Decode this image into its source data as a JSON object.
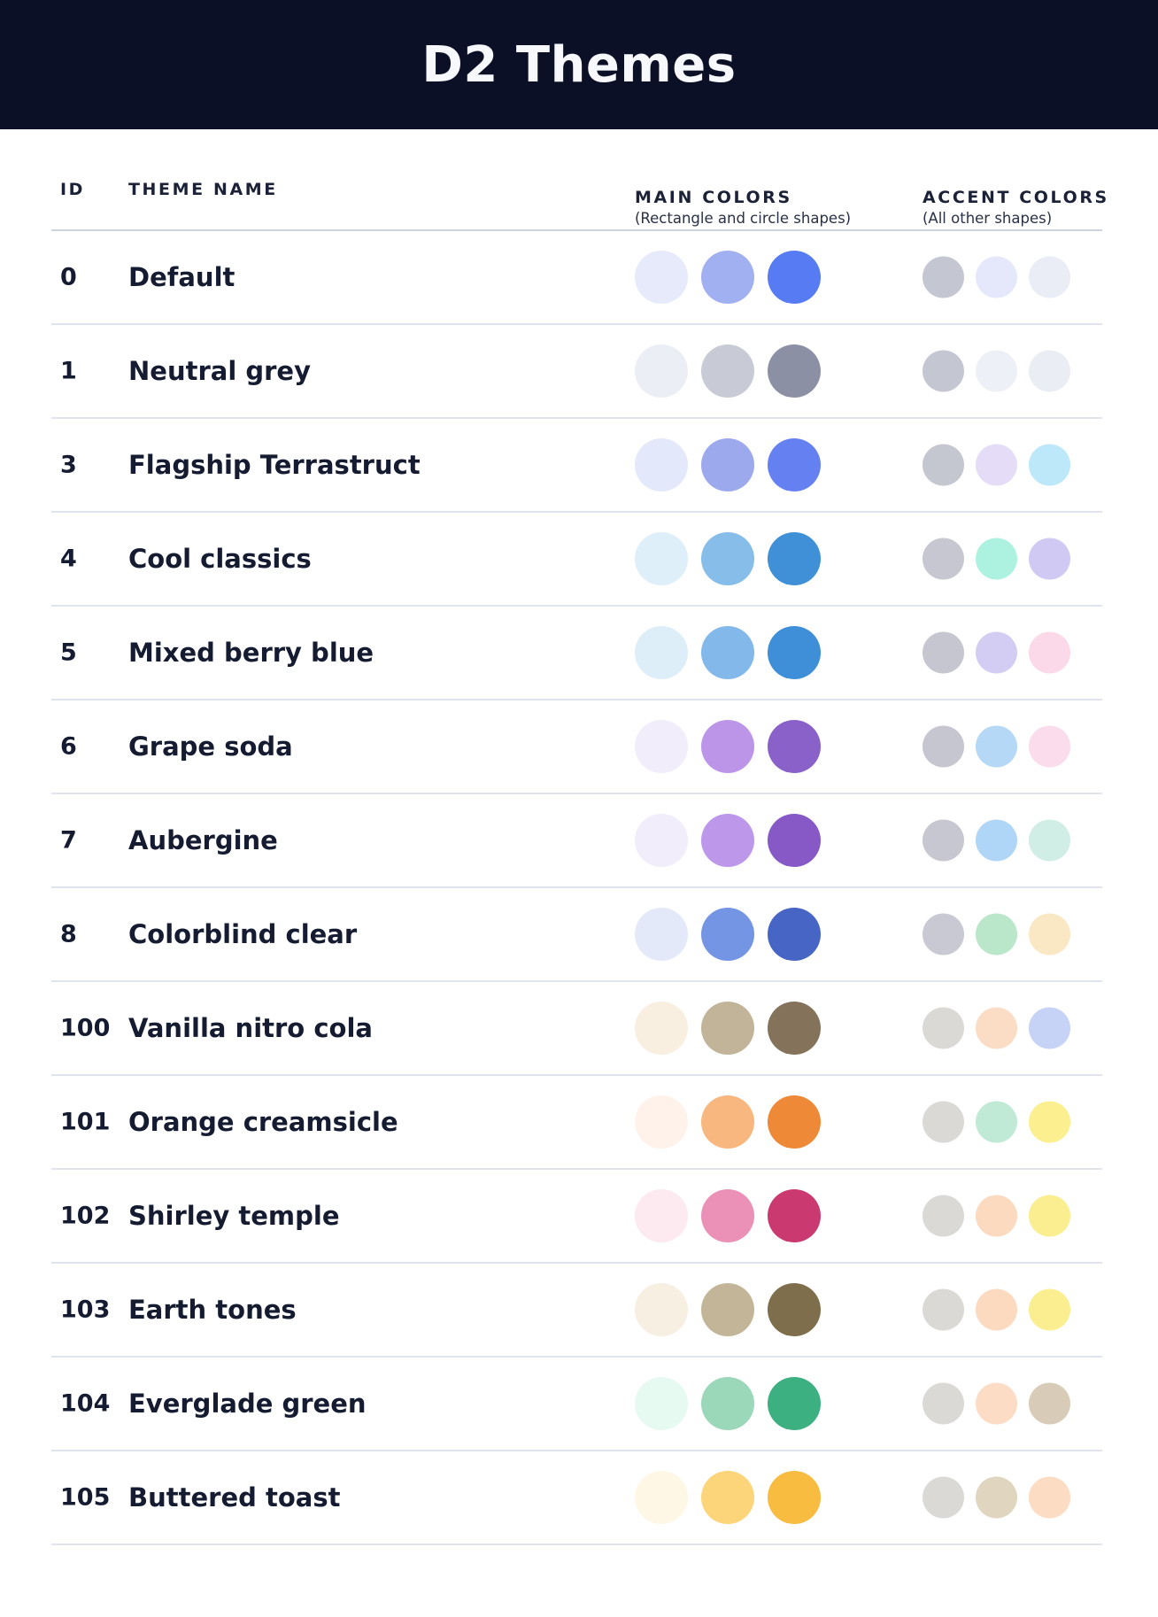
{
  "header": {
    "title": "D2 Themes"
  },
  "columns": {
    "id": "ID",
    "theme_name": "THEME NAME",
    "main": "MAIN COLORS",
    "main_sub": "(Rectangle and circle shapes)",
    "accent": "ACCENT COLORS",
    "accent_sub": "(All other shapes)"
  },
  "palette": {
    "banner_bg": "#0B1026",
    "title_text": "#F7F8FC",
    "body_text": "#151C32",
    "header_separator": "#CED3DF",
    "row_separator": "#E0E4EE"
  },
  "themes": [
    {
      "id": "0",
      "name": "Default",
      "main": [
        "#E6EAFB",
        "#A1B0F0",
        "#567BF2"
      ],
      "accent": [
        "#C4C7D2",
        "#E4E8FA",
        "#EAEDF5"
      ]
    },
    {
      "id": "1",
      "name": "Neutral grey",
      "main": [
        "#EBEEF4",
        "#C8CBD5",
        "#8B90A4"
      ],
      "accent": [
        "#C4C7D2",
        "#EDF0F6",
        "#EAEDF4"
      ]
    },
    {
      "id": "3",
      "name": "Flagship Terrastruct",
      "main": [
        "#E4E8FB",
        "#9DA9ED",
        "#6480F1"
      ],
      "accent": [
        "#C4C6D0",
        "#E5DDF8",
        "#BCE8FA"
      ]
    },
    {
      "id": "4",
      "name": "Cool classics",
      "main": [
        "#DEEFFA",
        "#86BDE9",
        "#3F90D7"
      ],
      "accent": [
        "#C6C7D1",
        "#ADF2E0",
        "#D0C9F4"
      ]
    },
    {
      "id": "5",
      "name": "Mixed berry blue",
      "main": [
        "#DEEEF9",
        "#82B8EA",
        "#3E8ED8"
      ],
      "accent": [
        "#C5C6D0",
        "#D3CCF3",
        "#FBD9E8"
      ]
    },
    {
      "id": "6",
      "name": "Grape soda",
      "main": [
        "#F2EDFA",
        "#BC95E8",
        "#8A61C9"
      ],
      "accent": [
        "#C5C6D0",
        "#B4D8F5",
        "#FBDCEC"
      ]
    },
    {
      "id": "7",
      "name": "Aubergine",
      "main": [
        "#F1EDFA",
        "#BD97EA",
        "#8659C7"
      ],
      "accent": [
        "#C6C7D0",
        "#AFD6F7",
        "#D0EEE6"
      ]
    },
    {
      "id": "8",
      "name": "Colorblind clear",
      "main": [
        "#E4E9F9",
        "#7495E4",
        "#4765C4"
      ],
      "accent": [
        "#C8C9D2",
        "#BAE6CA",
        "#FAE8C4"
      ]
    },
    {
      "id": "100",
      "name": "Vanilla nitro cola",
      "main": [
        "#F8EFE1",
        "#C2B499",
        "#84735A"
      ],
      "accent": [
        "#DBD9D5",
        "#FBDCC4",
        "#C6D3F6"
      ]
    },
    {
      "id": "101",
      "name": "Orange creamsicle",
      "main": [
        "#FEF2EB",
        "#F8B77E",
        "#EE8937"
      ],
      "accent": [
        "#DBD9D5",
        "#C1EAD6",
        "#FBEF90"
      ]
    },
    {
      "id": "102",
      "name": "Shirley temple",
      "main": [
        "#FCEAF0",
        "#EB91B8",
        "#CA3A70"
      ],
      "accent": [
        "#DBD9D5",
        "#FBDABF",
        "#FAEE90"
      ]
    },
    {
      "id": "103",
      "name": "Earth tones",
      "main": [
        "#F8EFE3",
        "#C3B597",
        "#7E6E4B"
      ],
      "accent": [
        "#DBD9D5",
        "#FBDAC0",
        "#FAEE90"
      ]
    },
    {
      "id": "104",
      "name": "Everglade green",
      "main": [
        "#E7FAF2",
        "#9BD7B9",
        "#3CB080"
      ],
      "accent": [
        "#DBD9D5",
        "#FCDCC4",
        "#D8CCB8"
      ]
    },
    {
      "id": "105",
      "name": "Buttered toast",
      "main": [
        "#FEF7E6",
        "#FCD57A",
        "#F8BC40"
      ],
      "accent": [
        "#DBD9D5",
        "#E0D5BF",
        "#FCDCC3"
      ]
    }
  ]
}
